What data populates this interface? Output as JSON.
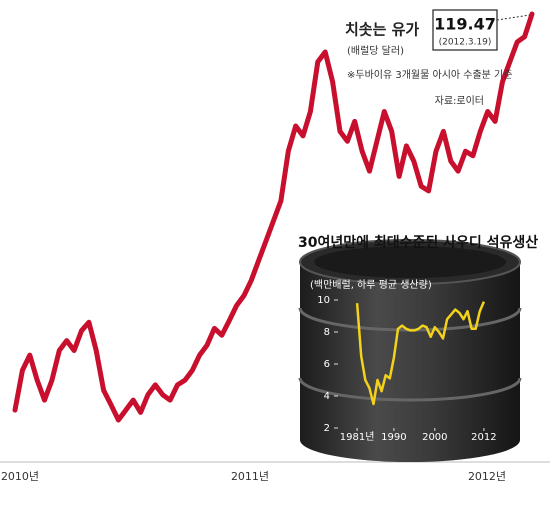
{
  "chart_data": [
    {
      "type": "line",
      "title": "치솟는 유가",
      "subtitle": "(배럴당 달러)",
      "note": "※두바이유 3개월물 아시아 수출분 기준",
      "source": "자료:로이터",
      "date_label": "(2012.3.19)",
      "xtick_labels": [
        "2010년",
        "2011년",
        "2012년"
      ],
      "color": "#c8102e",
      "values": [
        67.6,
        72.8,
        74.8,
        71.5,
        68.9,
        71.5,
        75.4,
        76.7,
        75.4,
        78.0,
        79.1,
        75.4,
        70.2,
        68.3,
        66.3,
        67.6,
        68.9,
        67.3,
        69.6,
        70.9,
        69.6,
        68.9,
        70.9,
        71.5,
        72.8,
        74.8,
        76.1,
        78.3,
        77.4,
        79.3,
        81.3,
        82.6,
        84.6,
        87.2,
        89.8,
        92.4,
        95.0,
        101.5,
        104.8,
        103.5,
        106.7,
        113.2,
        114.5,
        110.6,
        104.1,
        102.8,
        105.4,
        101.5,
        98.9,
        102.8,
        106.7,
        104.1,
        98.2,
        102.2,
        100.2,
        96.9,
        96.3,
        101.5,
        104.1,
        100.2,
        98.9,
        101.5,
        100.9,
        104.1,
        106.7,
        105.4,
        110.6,
        113.2,
        115.8,
        116.5,
        119.47
      ]
    },
    {
      "type": "line",
      "title": "30여년만에 최대수준된 사우디 석유생산",
      "subtitle": "(백만배럴, 하루 평균 생산량)",
      "color": "#f2d21a",
      "x": [
        1981,
        1982,
        1983,
        1984,
        1985,
        1986,
        1987,
        1988,
        1989,
        1990,
        1991,
        1992,
        1993,
        1994,
        1995,
        1996,
        1997,
        1998,
        1999,
        2000,
        2001,
        2002,
        2003,
        2004,
        2005,
        2006,
        2007,
        2008,
        2009,
        2010,
        2011,
        2012
      ],
      "values": [
        9.8,
        6.5,
        5.0,
        4.5,
        3.5,
        5.0,
        4.3,
        5.3,
        5.1,
        6.4,
        8.2,
        8.4,
        8.2,
        8.1,
        8.1,
        8.2,
        8.4,
        8.3,
        7.7,
        8.3,
        8.0,
        7.6,
        8.8,
        9.1,
        9.4,
        9.2,
        8.8,
        9.3,
        8.2,
        8.2,
        9.3,
        9.9
      ],
      "xlim": [
        1980,
        2013
      ],
      "xticks": [
        {
          "value": 1981,
          "label": "1981년"
        },
        1990,
        2000,
        2012
      ],
      "ylim": [
        1.5,
        10.5
      ],
      "yticks": [
        2,
        4,
        6,
        8,
        10
      ]
    }
  ]
}
